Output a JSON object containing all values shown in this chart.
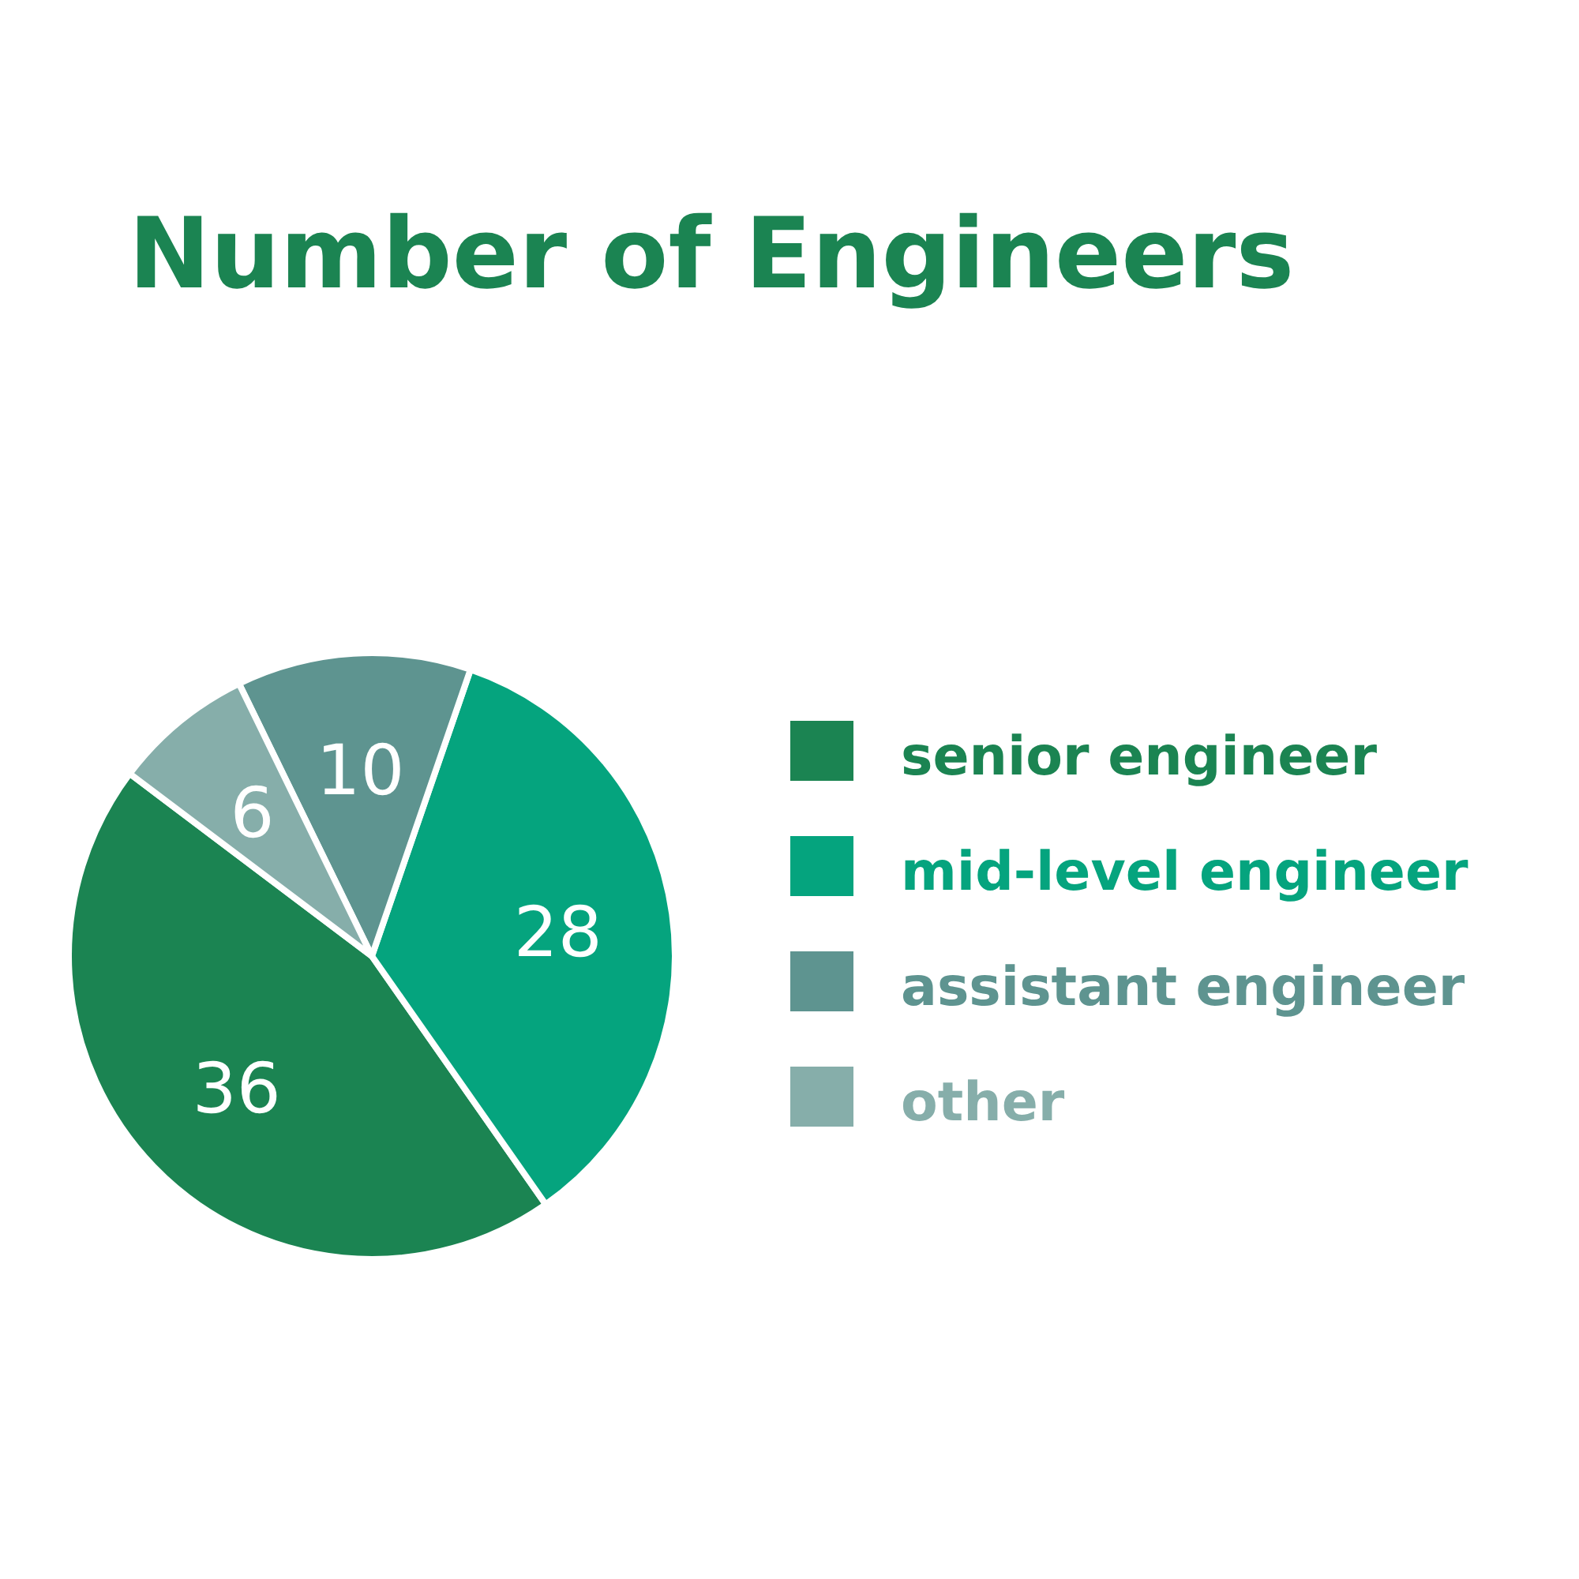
{
  "chart_data": {
    "type": "pie",
    "title": "Number of Engineers",
    "categories": [
      "senior engineer",
      "mid-level engineer",
      "assistant engineer",
      "other"
    ],
    "values": [
      36,
      28,
      10,
      6
    ],
    "colors": [
      "#1b8452",
      "#05a47e",
      "#5e9490",
      "#86aeaa"
    ],
    "data_labels": true,
    "legend": "right"
  }
}
